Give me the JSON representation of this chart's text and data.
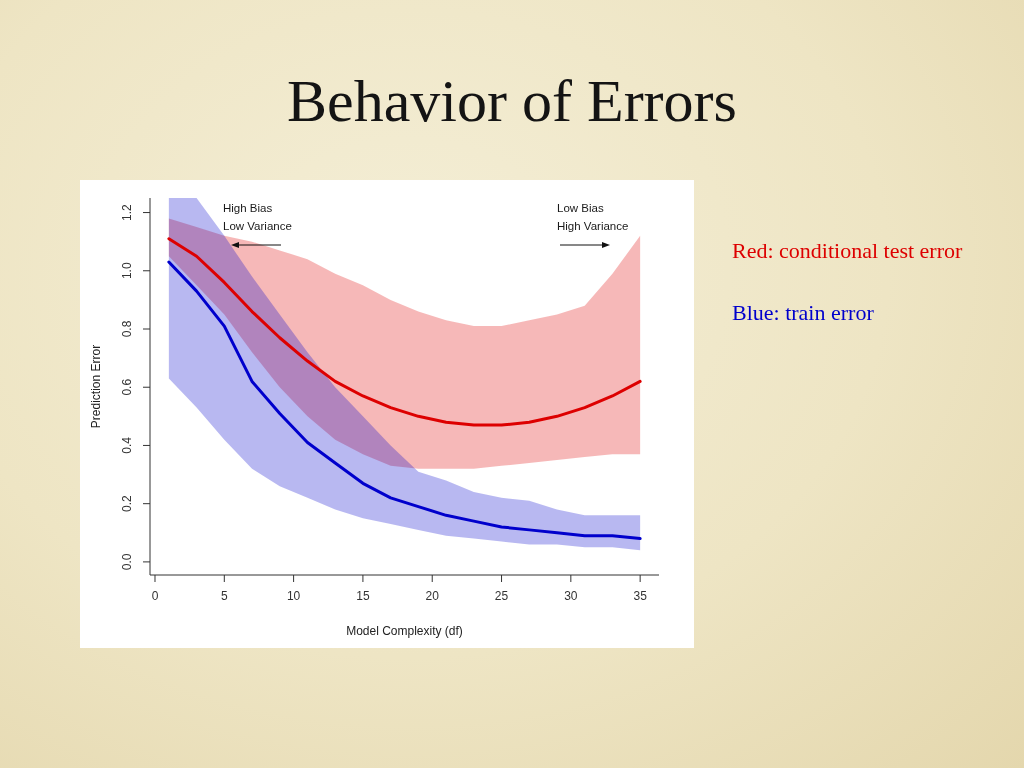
{
  "chart_data": {
    "type": "line",
    "title": "Behavior of Errors",
    "xlabel": "Model Complexity (df)",
    "ylabel": "Prediction Error",
    "x": [
      1,
      3,
      5,
      7,
      9,
      11,
      13,
      15,
      17,
      19,
      21,
      23,
      25,
      27,
      29,
      31,
      33,
      35
    ],
    "xlim": [
      -0.36,
      36.36
    ],
    "xticks": [
      0,
      5,
      10,
      15,
      20,
      25,
      30,
      35
    ],
    "ylim": [
      -0.045,
      1.25
    ],
    "yticks": [
      {
        "value": 0,
        "label": "0.0"
      },
      0.2,
      0.4,
      0.6,
      0.8,
      {
        "value": 1,
        "label": "1.0"
      },
      1.2
    ],
    "legend": "right",
    "annotations": [
      "High Bias",
      "Low Variance",
      "Low Bias",
      "High Variance"
    ],
    "series": [
      {
        "name": "Red: conditional test error",
        "color": "#dd0000",
        "values": [
          1.11,
          1.05,
          0.96,
          0.86,
          0.77,
          0.69,
          0.62,
          0.57,
          0.53,
          0.5,
          0.48,
          0.47,
          0.47,
          0.48,
          0.5,
          0.53,
          0.57,
          0.62
        ],
        "lower": [
          1.05,
          0.95,
          0.85,
          0.72,
          0.6,
          0.5,
          0.42,
          0.37,
          0.33,
          0.32,
          0.32,
          0.32,
          0.33,
          0.34,
          0.35,
          0.36,
          0.37,
          0.37
        ],
        "upper": [
          1.18,
          1.15,
          1.12,
          1.1,
          1.07,
          1.04,
          0.99,
          0.95,
          0.9,
          0.86,
          0.83,
          0.81,
          0.81,
          0.83,
          0.85,
          0.88,
          0.99,
          1.12
        ]
      },
      {
        "name": "Blue: train error",
        "color": "#0000cc",
        "values": [
          1.03,
          0.93,
          0.81,
          0.62,
          0.51,
          0.41,
          0.34,
          0.27,
          0.22,
          0.19,
          0.16,
          0.14,
          0.12,
          0.11,
          0.1,
          0.09,
          0.09,
          0.08
        ],
        "lower": [
          0.63,
          0.53,
          0.42,
          0.32,
          0.26,
          0.22,
          0.18,
          0.15,
          0.13,
          0.11,
          0.09,
          0.08,
          0.07,
          0.06,
          0.06,
          0.05,
          0.05,
          0.04
        ],
        "upper": [
          1.25,
          1.25,
          1.12,
          0.98,
          0.85,
          0.72,
          0.6,
          0.5,
          0.4,
          0.31,
          0.28,
          0.24,
          0.22,
          0.21,
          0.18,
          0.16,
          0.16,
          0.16
        ]
      }
    ]
  }
}
